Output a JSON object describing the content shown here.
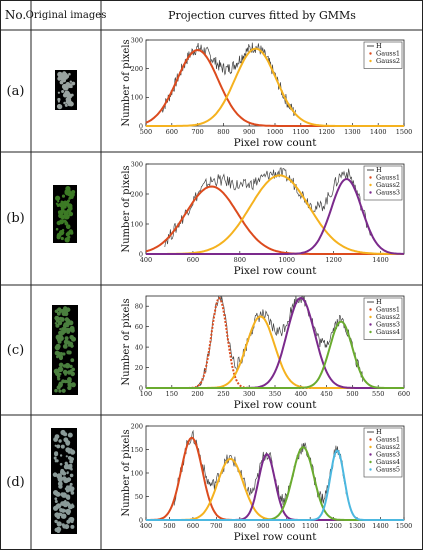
{
  "table": {
    "headers": [
      "No.",
      "Original images",
      "Projection curves fitted by GMMs"
    ],
    "rows": [
      {
        "label": "(a)"
      },
      {
        "label": "(b)"
      },
      {
        "label": "(c)"
      },
      {
        "label": "(d)"
      }
    ]
  },
  "colors": {
    "H": "#444444",
    "gauss": [
      "#dc4b1e",
      "#f5b21f",
      "#7b2a8c",
      "#6aab2f",
      "#4cb8e0"
    ],
    "plant_a": "#9aa3a0",
    "plant_b": "#3c7a25",
    "plant_c": "#4a7f3e",
    "plant_d": "#8a9a98"
  },
  "chart_data": [
    {
      "type": "line",
      "xlabel": "Pixel row count",
      "ylabel": "Number of pixels",
      "xlim": [
        500,
        1500
      ],
      "ylim": [
        0,
        300
      ],
      "xticks": [
        500,
        600,
        700,
        800,
        900,
        1000,
        1100,
        1200,
        1300,
        1400,
        1500
      ],
      "yticks": [
        0,
        100,
        200,
        300
      ],
      "legend": [
        "H",
        "Gauss1",
        "Gauss2"
      ],
      "legend_position": "top-right",
      "H_range": [
        560,
        1080
      ],
      "components": [
        {
          "name": "Gauss1",
          "mean": 700,
          "sd": 80,
          "peak": 265
        },
        {
          "name": "Gauss2",
          "mean": 925,
          "sd": 80,
          "peak": 270
        }
      ]
    },
    {
      "type": "line",
      "xlabel": "Pixel row count",
      "ylabel": "Number of pixels",
      "xlim": [
        400,
        1500
      ],
      "ylim": [
        0,
        300
      ],
      "xticks": [
        400,
        600,
        800,
        1000,
        1200,
        1400
      ],
      "yticks": [
        0,
        100,
        200,
        300
      ],
      "legend": [
        "H",
        "Gauss1",
        "Gauss2",
        "Gauss3"
      ],
      "legend_position": "top-right",
      "H_range": [
        480,
        1360
      ],
      "components": [
        {
          "name": "Gauss1",
          "mean": 680,
          "sd": 110,
          "peak": 225
        },
        {
          "name": "Gauss2",
          "mean": 970,
          "sd": 125,
          "peak": 262
        },
        {
          "name": "Gauss3",
          "mean": 1255,
          "sd": 65,
          "peak": 250
        }
      ]
    },
    {
      "type": "line",
      "xlabel": "Pixel row count",
      "ylabel": "Number of pixels",
      "xlim": [
        100,
        600
      ],
      "ylim": [
        0,
        90
      ],
      "xticks": [
        100,
        150,
        200,
        250,
        300,
        350,
        400,
        450,
        500,
        550,
        600
      ],
      "yticks": [
        0,
        20,
        40,
        60,
        80
      ],
      "legend": [
        "H",
        "Gauss1",
        "Gauss2",
        "Gauss3",
        "Gauss4"
      ],
      "legend_position": "top-right",
      "H_range": [
        200,
        520
      ],
      "components": [
        {
          "name": "Gauss1",
          "mean": 242,
          "sd": 15,
          "peak": 88
        },
        {
          "name": "Gauss2",
          "mean": 322,
          "sd": 27,
          "peak": 70
        },
        {
          "name": "Gauss3",
          "mean": 400,
          "sd": 27,
          "peak": 88
        },
        {
          "name": "Gauss4",
          "mean": 478,
          "sd": 22,
          "peak": 65
        }
      ]
    },
    {
      "type": "line",
      "xlabel": "Pixel row count",
      "ylabel": "Number of pixels",
      "xlim": [
        400,
        1500
      ],
      "ylim": [
        0,
        200
      ],
      "xticks": [
        400,
        500,
        600,
        700,
        800,
        900,
        1000,
        1100,
        1200,
        1300,
        1400,
        1500
      ],
      "yticks": [
        0,
        50,
        100,
        150,
        200
      ],
      "legend": [
        "H",
        "Gauss1",
        "Gauss2",
        "Gauss3",
        "Gauss4",
        "Gauss5"
      ],
      "legend_position": "top-right",
      "H_range": [
        520,
        1260
      ],
      "components": [
        {
          "name": "Gauss1",
          "mean": 595,
          "sd": 45,
          "peak": 175
        },
        {
          "name": "Gauss2",
          "mean": 760,
          "sd": 55,
          "peak": 130
        },
        {
          "name": "Gauss3",
          "mean": 915,
          "sd": 35,
          "peak": 140
        },
        {
          "name": "Gauss4",
          "mean": 1070,
          "sd": 45,
          "peak": 155
        },
        {
          "name": "Gauss5",
          "mean": 1215,
          "sd": 30,
          "peak": 148
        }
      ]
    }
  ]
}
